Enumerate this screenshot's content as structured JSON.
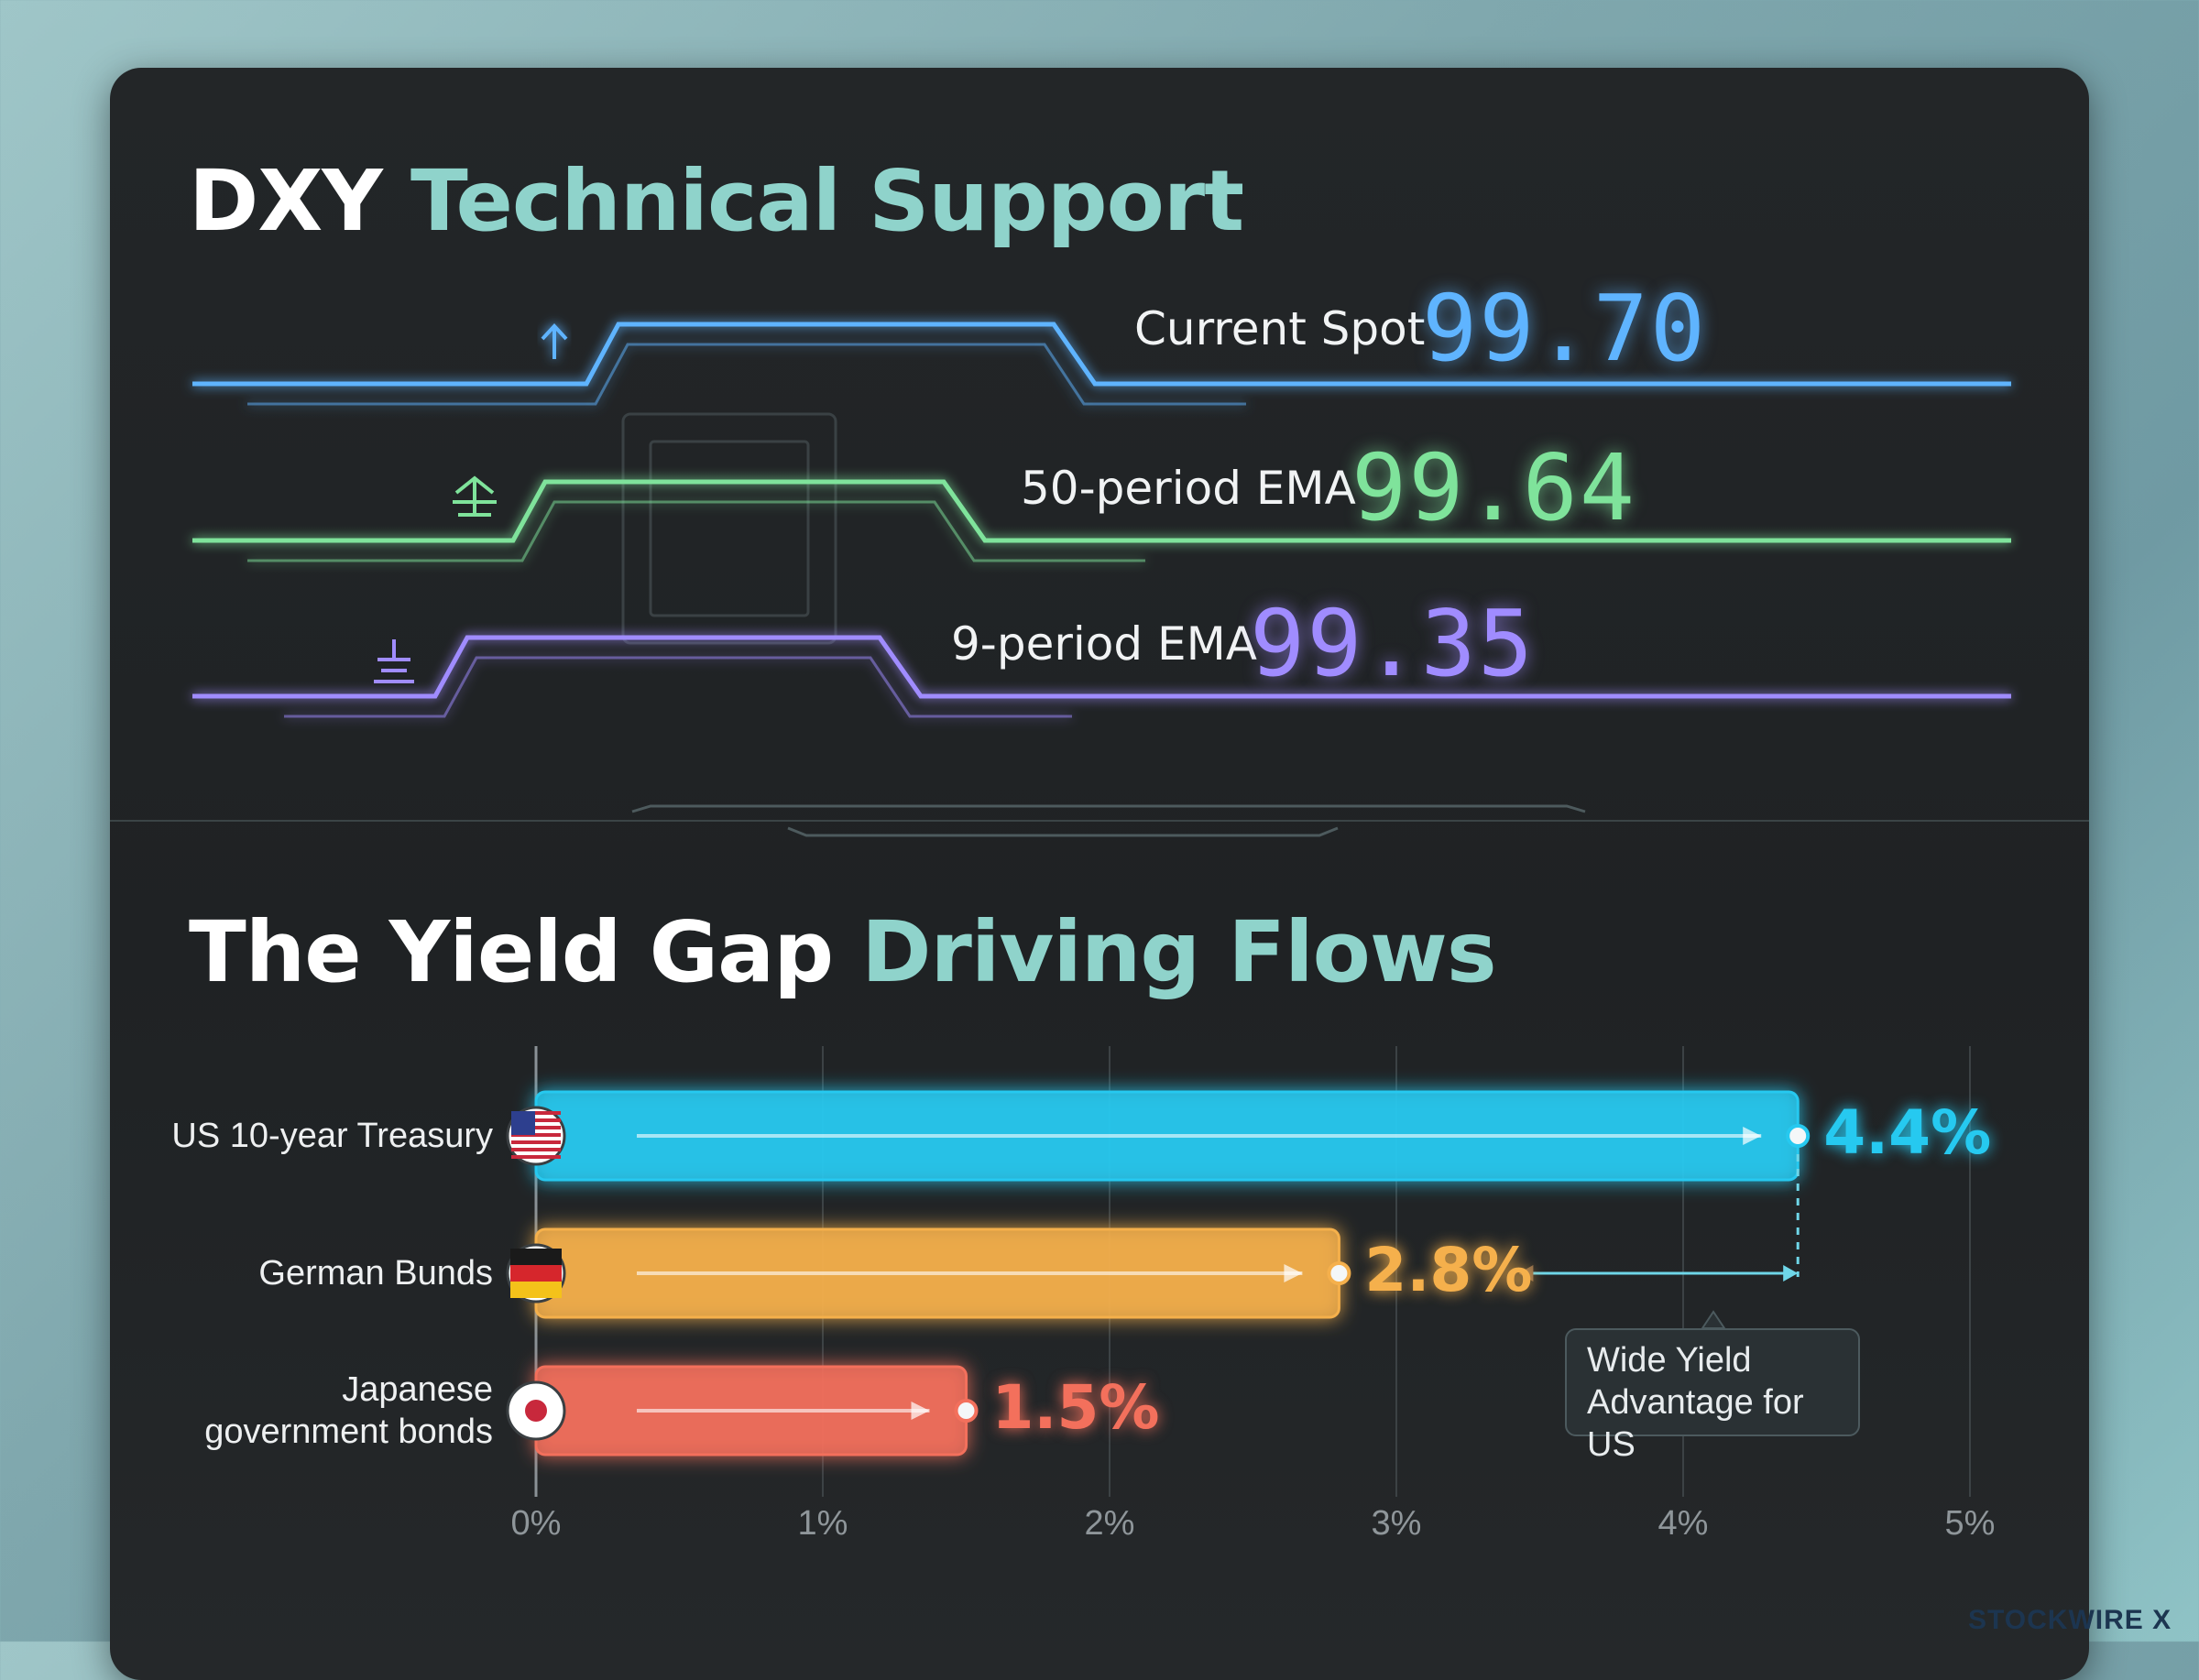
{
  "section1": {
    "title_white": "DXY",
    "title_accent": "Technical Support",
    "levels": [
      {
        "label": "Current Spot",
        "value": "99.70",
        "color": "#5fb4ff"
      },
      {
        "label": "50-period EMA",
        "value": "99.64",
        "color": "#7fe39b"
      },
      {
        "label": "9-period EMA",
        "value": "99.35",
        "color": "#a08cff"
      }
    ]
  },
  "section2": {
    "title_white": "The Yield Gap",
    "title_accent": "Driving Flows"
  },
  "chart_data": {
    "type": "bar",
    "orientation": "horizontal",
    "categories": [
      "US 10-year Treasury",
      "German Bunds",
      "Japanese government bonds"
    ],
    "category_lines": [
      [
        "US 10-year Treasury"
      ],
      [
        "German Bunds"
      ],
      [
        "Japanese",
        "government bonds"
      ]
    ],
    "values": [
      4.4,
      2.8,
      1.5
    ],
    "value_labels": [
      "4.4%",
      "2.8%",
      "1.5%"
    ],
    "colors": [
      "#26c9f0",
      "#f5b04c",
      "#f3705c"
    ],
    "flags": [
      "us-flag-icon",
      "germany-flag-icon",
      "japan-flag-icon"
    ],
    "xlim": [
      0,
      5
    ],
    "xticks": [
      "0%",
      "1%",
      "2%",
      "3%",
      "4%",
      "5%"
    ],
    "grid": true,
    "annotation": {
      "lines": [
        "Wide Yield",
        "Advantage for US"
      ]
    }
  },
  "brand": "STOCKWIRE X"
}
